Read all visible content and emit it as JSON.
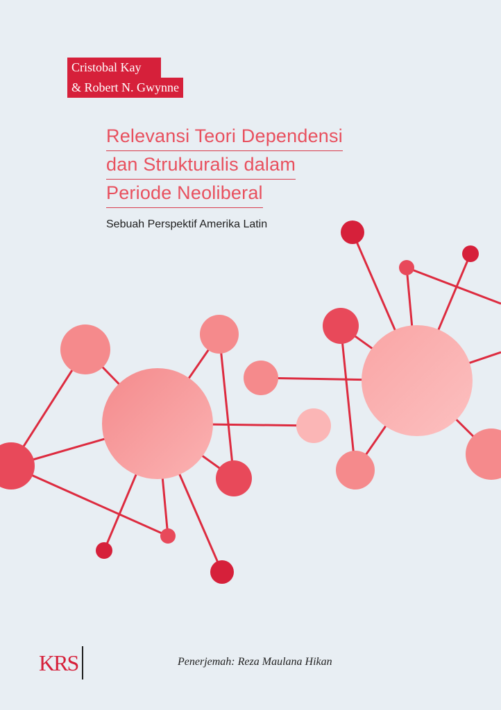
{
  "authors": [
    "Cristobal Kay",
    "& Robert N. Gwynne"
  ],
  "title_lines": [
    "Relevansi Teori Dependensi",
    "dan Strukturalis dalam",
    "Periode Neoliberal"
  ],
  "subtitle": "Sebuah Perspektif Amerika Latin",
  "publisher_logo": "KRS",
  "translator": "Penerjemah: Reza Maulana Hikan",
  "colors": {
    "accent": "#d6203a",
    "title": "#e8505e",
    "background": "#e8eef3",
    "line": "#dd2b3f"
  }
}
